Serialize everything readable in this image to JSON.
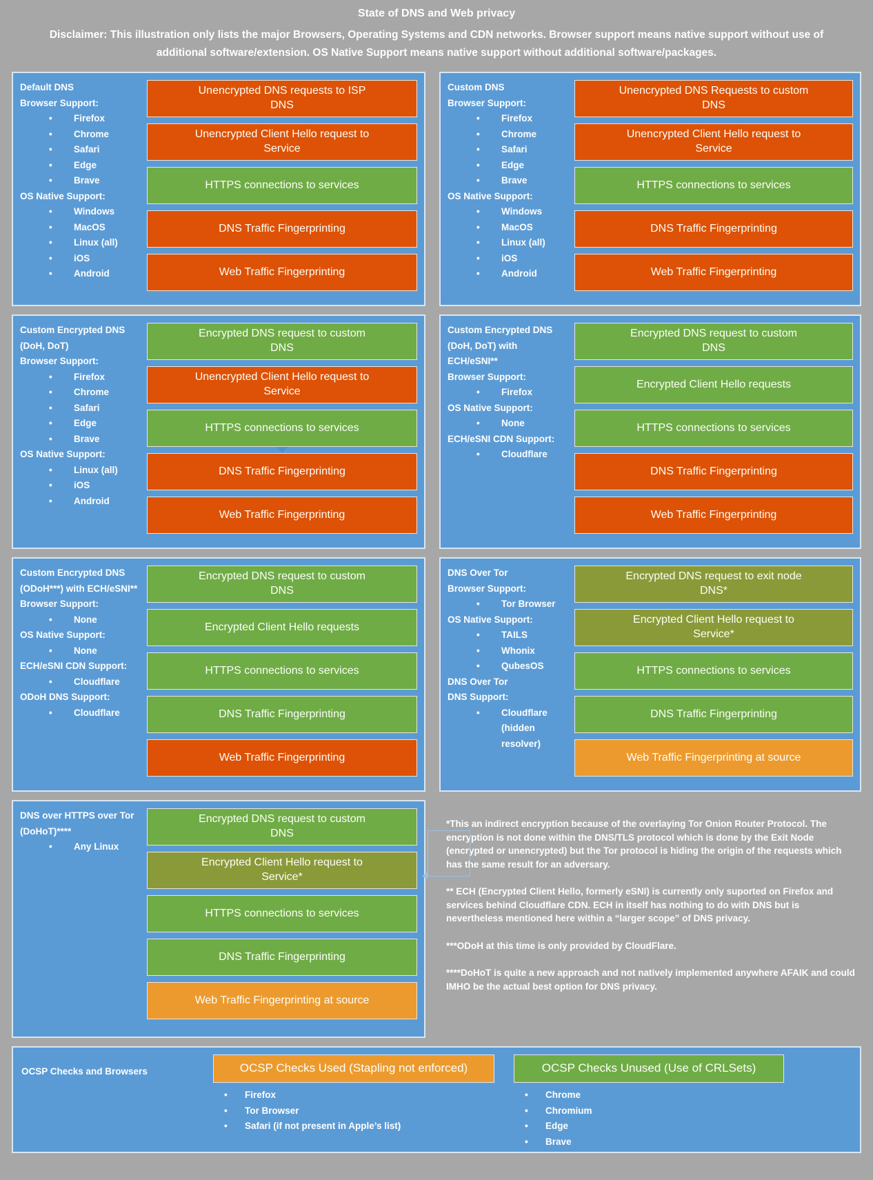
{
  "header": {
    "title": "State of DNS and Web privacy",
    "disclaimer": "Disclaimer: This illustration only lists the major Browsers, Operating Systems and CDN networks. Browser support means native support without use of additional software/extension. OS Native Support means native support without additional software/packages."
  },
  "colors": {
    "background_gray": "#A7A7A7",
    "panel_blue": "#5B9BD5",
    "bar_unencrypted_red": "#DD5206",
    "bar_encrypted_green": "#6FAC46",
    "bar_tor_olive": "#8B9A38",
    "bar_warning_amber": "#EC9A2E",
    "text_white": "#FFFFFF"
  },
  "panels": [
    {
      "title": "Default DNS",
      "lines": [
        "Browser Support:",
        "Firefox",
        "Chrome",
        "Safari",
        "Edge",
        "Brave",
        "OS Native Support:",
        "Windows",
        "MacOS",
        "Linux (all)",
        "iOS",
        "Android"
      ],
      "bars": [
        {
          "text": "Unencrypted DNS requests to ISP DNS",
          "status": "unencrypted"
        },
        {
          "text": "Unencrypted Client Hello request to Service",
          "status": "unencrypted"
        },
        {
          "text": "HTTPS connections to services",
          "status": "encrypted"
        },
        {
          "text": "DNS Traffic Fingerprinting",
          "status": "bad"
        },
        {
          "text": "Web Traffic Fingerprinting",
          "status": "bad"
        }
      ]
    },
    {
      "title": "Custom DNS",
      "lines": [
        "Browser Support:",
        "Firefox",
        "Chrome",
        "Safari",
        "Edge",
        "Brave",
        "OS Native Support:",
        "Windows",
        "MacOS",
        "Linux (all)",
        "iOS",
        "Android"
      ],
      "bars": [
        {
          "text": "Unencrypted DNS Requests to custom DNS",
          "status": "unencrypted"
        },
        {
          "text": "Unencrypted Client Hello request to Service",
          "status": "unencrypted"
        },
        {
          "text": "HTTPS connections to services",
          "status": "encrypted"
        },
        {
          "text": "DNS Traffic Fingerprinting",
          "status": "bad"
        },
        {
          "text": "Web Traffic Fingerprinting",
          "status": "bad"
        }
      ]
    },
    {
      "title": "Custom Encrypted DNS (DoH, DoT)",
      "lines": [
        "Browser Support:",
        "Firefox",
        "Chrome",
        "Safari",
        "Edge",
        "Brave",
        "OS Native Support:",
        "Linux (all)",
        "iOS",
        "Android"
      ],
      "bars": [
        {
          "text": "Encrypted DNS request to custom DNS",
          "status": "encrypted"
        },
        {
          "text": "Unencrypted Client Hello request to Service",
          "status": "unencrypted"
        },
        {
          "text": "HTTPS connections to services",
          "status": "encrypted"
        },
        {
          "text": "DNS Traffic Fingerprinting",
          "status": "bad"
        },
        {
          "text": "Web Traffic Fingerprinting",
          "status": "bad"
        }
      ]
    },
    {
      "title": "Custom Encrypted DNS (DoH, DoT) with ECH/eSNI**",
      "lines": [
        "Browser Support:",
        "Firefox",
        "OS Native Support:",
        "None",
        "ECH/eSNI CDN Support:",
        "Cloudflare"
      ],
      "bars": [
        {
          "text": "Encrypted DNS request to custom DNS",
          "status": "encrypted"
        },
        {
          "text": "Encrypted Client Hello requests",
          "status": "encrypted"
        },
        {
          "text": "HTTPS connections to services",
          "status": "encrypted"
        },
        {
          "text": "DNS Traffic Fingerprinting",
          "status": "bad"
        },
        {
          "text": "Web Traffic Fingerprinting",
          "status": "bad"
        }
      ]
    },
    {
      "title": "Custom Encrypted DNS (ODoH***) with ECH/eSNI**",
      "lines": [
        "Browser Support:",
        "None",
        "OS Native Support:",
        "None",
        "ECH/eSNI CDN Support:",
        "Cloudflare",
        "ODoH DNS Support:",
        "Cloudflare"
      ],
      "bars": [
        {
          "text": "Encrypted DNS request to custom DNS",
          "status": "encrypted"
        },
        {
          "text": "Encrypted Client Hello requests",
          "status": "encrypted"
        },
        {
          "text": "HTTPS connections to services",
          "status": "encrypted"
        },
        {
          "text": "DNS Traffic Fingerprinting",
          "status": "good"
        },
        {
          "text": "Web Traffic Fingerprinting",
          "status": "bad"
        }
      ]
    },
    {
      "title": "DNS Over Tor",
      "lines": [
        "Browser Support:",
        "Tor Browser",
        "OS Native Support:",
        "TAILS",
        "Whonix",
        "QubesOS",
        "DNS Over Tor",
        "DNS Support:",
        "Cloudflare",
        "(hidden resolver)"
      ],
      "bars": [
        {
          "text": "Encrypted DNS request to exit node DNS*",
          "status": "tor-encrypted"
        },
        {
          "text": "Encrypted Client Hello request to Service*",
          "status": "tor-encrypted"
        },
        {
          "text": "HTTPS connections to services",
          "status": "encrypted"
        },
        {
          "text": "DNS Traffic Fingerprinting",
          "status": "good"
        },
        {
          "text": "Web Traffic Fingerprinting at source",
          "status": "warning"
        }
      ]
    },
    {
      "title": "DNS over HTTPS over Tor (DoHoT)****",
      "lines": [
        "Any Linux"
      ],
      "bars": [
        {
          "text": "Encrypted DNS request to custom DNS",
          "status": "encrypted"
        },
        {
          "text": "Encrypted Client Hello request to Service*",
          "status": "tor-encrypted"
        },
        {
          "text": "HTTPS connections to services",
          "status": "encrypted"
        },
        {
          "text": "DNS Traffic Fingerprinting",
          "status": "good"
        },
        {
          "text": "Web Traffic Fingerprinting at source",
          "status": "warning"
        }
      ]
    }
  ],
  "notes": [
    "*This an indirect encryption because of the overlaying Tor Onion Router Protocol. The encryption is not done within the DNS/TLS protocol which is done by the Exit Node (encrypted or unencrypted) but the Tor protocol is hiding the origin of the requests which has the same result for an adversary.",
    "** ECH (Encrypted Client Hello, formerly eSNI) is currently only suported on Firefox and services behind Cloudflare CDN. ECH in itself has nothing to do with DNS but is nevertheless mentioned here within a “larger scope” of DNS privacy.",
    "***ODoH at this time is only provided by CloudFlare.",
    "****DoHoT is quite a new approach and not natively implemented anywhere AFAIK and could IMHO be the actual best option for DNS privacy."
  ],
  "ocsp": {
    "title": "OCSP Checks and Browsers",
    "used": {
      "bar": "OCSP Checks Used (Stapling not enforced)",
      "browsers": [
        "Firefox",
        "Tor Browser",
        "Safari (if not present in Apple’s list)"
      ]
    },
    "unused": {
      "bar": "OCSP Checks Unused (Use of CRLSets)",
      "browsers": [
        "Chrome",
        "Chromium",
        "Edge",
        "Brave"
      ]
    }
  }
}
